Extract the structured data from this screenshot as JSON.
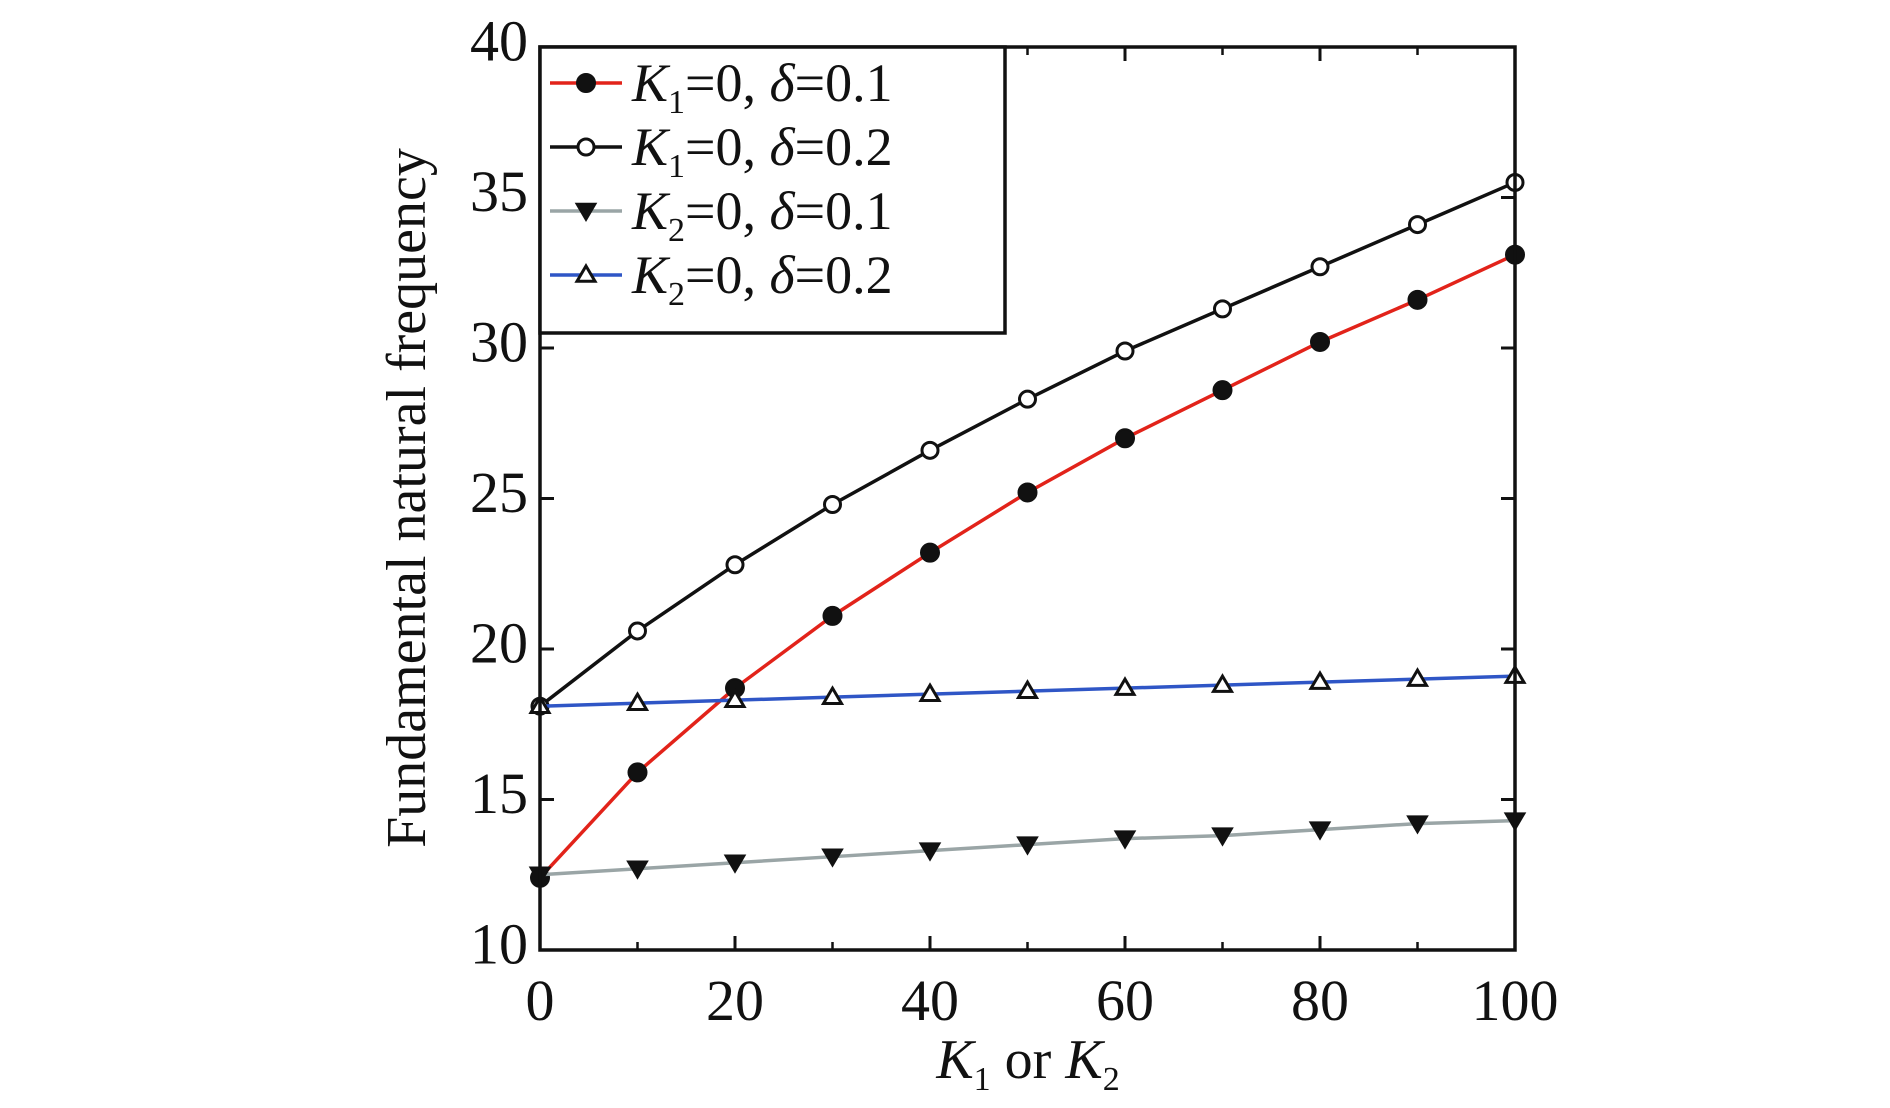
{
  "chart_data": {
    "type": "line",
    "xlabel": {
      "letter": "K",
      "sub1": "1",
      "middle": " or ",
      "sub2": "2"
    },
    "ylabel": "Fundamental natural frequency",
    "xlim": [
      0,
      100
    ],
    "ylim": [
      10,
      40
    ],
    "x_ticks": [
      0,
      20,
      40,
      60,
      80,
      100
    ],
    "y_ticks": [
      10,
      15,
      20,
      25,
      30,
      35,
      40
    ],
    "x_minor_ticks": [
      10,
      30,
      50,
      70,
      90
    ],
    "legend_position": "top-left",
    "x": [
      0,
      10,
      20,
      30,
      40,
      50,
      60,
      70,
      80,
      90,
      100
    ],
    "series": [
      {
        "legend": {
          "letter": "K",
          "sub": "1",
          "rest": "=0, ",
          "delta": "δ",
          "value": "=0.1"
        },
        "color": "#e2231a",
        "marker": "filled-circle",
        "values": [
          12.4,
          15.9,
          18.7,
          21.1,
          23.2,
          25.2,
          27.0,
          28.6,
          30.2,
          31.6,
          33.1
        ]
      },
      {
        "legend": {
          "letter": "K",
          "sub": "1",
          "rest": "=0, ",
          "delta": "δ",
          "value": "=0.2"
        },
        "color": "#111111",
        "marker": "open-circle",
        "values": [
          18.1,
          20.6,
          22.8,
          24.8,
          26.6,
          28.3,
          29.9,
          31.3,
          32.7,
          34.1,
          35.5
        ]
      },
      {
        "legend": {
          "letter": "K",
          "sub": "2",
          "rest": "=0, ",
          "delta": "δ",
          "value": "=0.1"
        },
        "color": "#9aa5a6",
        "marker": "filled-triangle-down",
        "values": [
          12.5,
          12.7,
          12.9,
          13.1,
          13.3,
          13.5,
          13.7,
          13.8,
          14.0,
          14.2,
          14.3
        ]
      },
      {
        "legend": {
          "letter": "K",
          "sub": "2",
          "rest": "=0, ",
          "delta": "δ",
          "value": "=0.2"
        },
        "color": "#2f56c6",
        "marker": "open-triangle-up",
        "values": [
          18.1,
          18.2,
          18.3,
          18.4,
          18.5,
          18.6,
          18.7,
          18.8,
          18.9,
          19.0,
          19.1
        ]
      }
    ]
  }
}
